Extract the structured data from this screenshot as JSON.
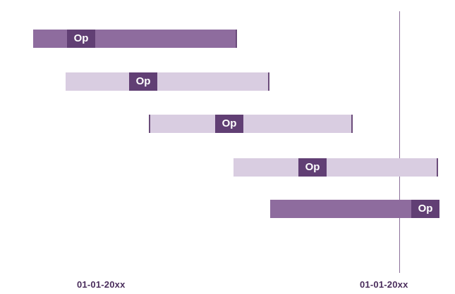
{
  "bars": [
    {
      "label": "Op",
      "shade": "dark"
    },
    {
      "label": "Op",
      "shade": "light"
    },
    {
      "label": "Op",
      "shade": "light"
    },
    {
      "label": "Op",
      "shade": "light"
    },
    {
      "label": "Op",
      "shade": "dark"
    }
  ],
  "axis": {
    "start_label": "01-01-20xx",
    "end_label": "01-01-20xx"
  },
  "colors": {
    "bar_dark": "#8e6c9e",
    "bar_light": "#d9cde1",
    "label_bg": "#613f74",
    "reference_line": "#8b6f99",
    "date_text": "#4a2d5c"
  }
}
